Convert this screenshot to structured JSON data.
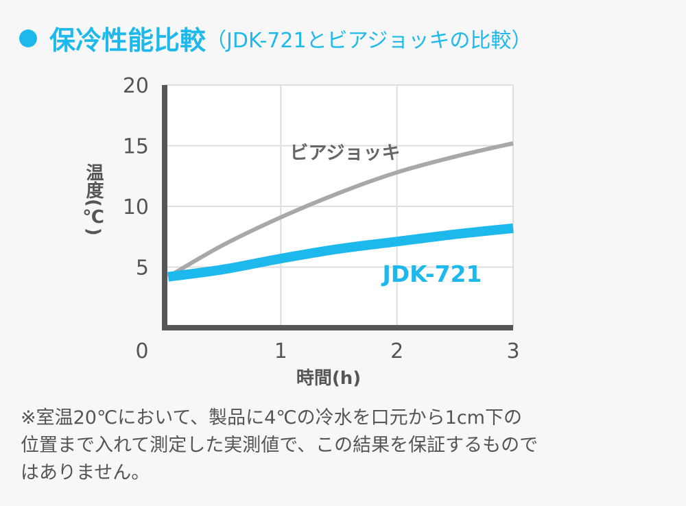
{
  "title": {
    "main": "保冷性能比較",
    "sub": "（JDK-721とビアジョッキの比較）"
  },
  "colors": {
    "accent": "#1eb9ec",
    "gray": "#a8a8a8",
    "axis": "#575555"
  },
  "chart_data": {
    "type": "line",
    "title": "保冷性能比較（JDK-721とビアジョッキの比較）",
    "xlabel": "時間(h)",
    "ylabel": "温度(℃)",
    "xlim": [
      0,
      3
    ],
    "ylim": [
      0,
      20
    ],
    "xticks": [
      "0",
      "1",
      "2",
      "3"
    ],
    "yticks": [
      "5",
      "10",
      "15",
      "20"
    ],
    "grid": true,
    "series": [
      {
        "name": "ビアジョッキ",
        "color": "#a8a8a8",
        "x": [
          0.03,
          0.5,
          1,
          1.5,
          2,
          2.5,
          3
        ],
        "y": [
          4.2,
          6.8,
          9.1,
          11.1,
          12.8,
          14.1,
          15.2
        ]
      },
      {
        "name": "JDK-721",
        "color": "#1eb9ec",
        "x": [
          0.03,
          0.5,
          1,
          1.5,
          2,
          2.5,
          3
        ],
        "y": [
          4.2,
          4.8,
          5.7,
          6.5,
          7.1,
          7.7,
          8.2
        ]
      }
    ]
  },
  "note": [
    "※室温20℃において、製品に4℃の冷水を口元から1cm下の",
    "位置まで入れて測定した実測値で、この結果を保証するもので",
    "はありません。"
  ]
}
